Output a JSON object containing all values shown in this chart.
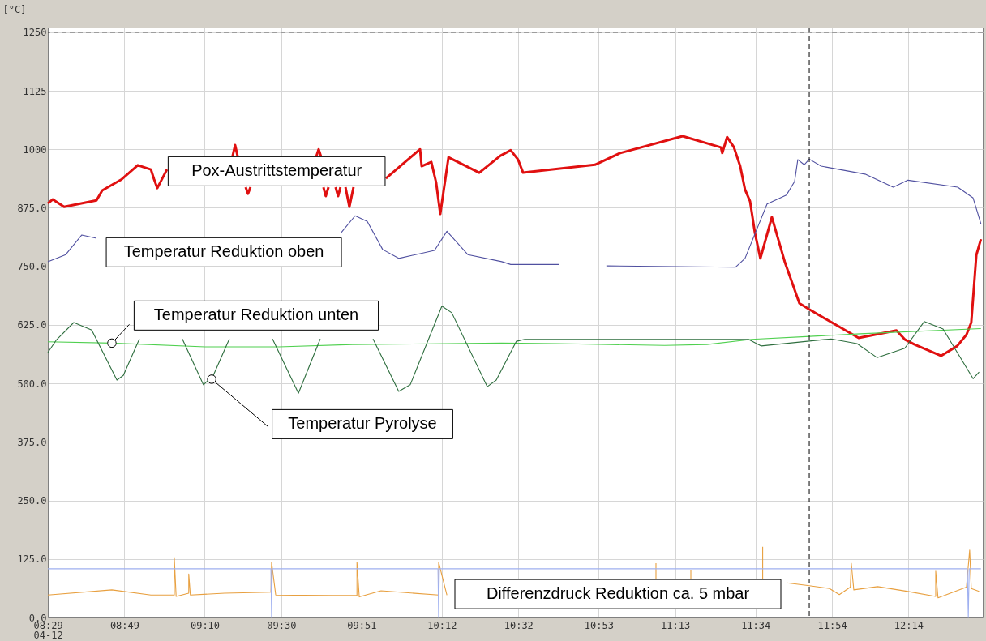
{
  "chart_data": {
    "type": "line",
    "ylabel": "[°C]",
    "xlim": [
      8.483,
      12.557
    ],
    "ylim": [
      0,
      1260
    ],
    "xticks": [
      {
        "value": 8.4833,
        "label": "08:29\n04-12"
      },
      {
        "value": 8.8167,
        "label": "08:49"
      },
      {
        "value": 9.1667,
        "label": "09:10"
      },
      {
        "value": 9.5,
        "label": "09:30"
      },
      {
        "value": 9.85,
        "label": "09:51"
      },
      {
        "value": 10.2,
        "label": "10:12"
      },
      {
        "value": 10.5333,
        "label": "10:32"
      },
      {
        "value": 10.8833,
        "label": "10:53"
      },
      {
        "value": 11.2167,
        "label": "11:13"
      },
      {
        "value": 11.5667,
        "label": "11:34"
      },
      {
        "value": 11.9,
        "label": "11:54"
      },
      {
        "value": 12.2333,
        "label": "12:14"
      }
    ],
    "yticks": [
      1250,
      1125,
      1000,
      {
        "value": 875,
        "label": "875.0"
      },
      {
        "value": 750,
        "label": "750.0"
      },
      {
        "value": 625,
        "label": "625.0"
      },
      {
        "value": 500,
        "label": "500.0"
      },
      {
        "value": 375,
        "label": "375.0"
      },
      {
        "value": 250,
        "label": "250.0"
      },
      {
        "value": 125,
        "label": "125.0"
      },
      {
        "value": 0,
        "label": "0.0"
      }
    ],
    "grid": true,
    "ref_lines": [
      {
        "axis": "y",
        "value": 1250,
        "color": "#000000",
        "line_style": "dashed"
      },
      {
        "axis": "x",
        "value": 11.801,
        "color": "#000000",
        "line_style": "dashed"
      }
    ],
    "series": [
      {
        "name": "Pox-Austrittstemperatur",
        "color": "#e01010",
        "x": [
          8.483,
          8.504,
          8.554,
          8.695,
          8.72,
          8.805,
          8.875,
          8.932,
          8.946,
          8.96,
          9.002,
          9.11,
          9.288,
          9.299,
          9.31,
          9.323,
          9.345,
          9.355,
          9.366,
          9.516,
          9.653,
          9.663,
          9.673,
          9.678,
          9.684,
          9.694,
          9.706,
          9.719,
          9.737,
          9.748,
          9.758,
          9.77,
          9.78,
          9.797,
          9.815,
          9.871,
          9.956,
          10.105,
          10.112,
          10.154,
          10.175,
          10.193,
          10.229,
          10.363,
          10.454,
          10.5,
          10.532,
          10.554,
          10.867,
          10.977,
          11.249,
          11.416,
          11.422,
          11.443,
          11.472,
          11.5,
          11.521,
          11.543,
          11.564,
          11.588,
          11.638,
          11.694,
          11.758,
          11.801,
          11.889,
          12.016,
          12.181,
          12.217,
          12.26,
          12.376,
          12.446,
          12.486,
          12.507,
          12.529,
          12.549
        ],
        "values": [
          884,
          893,
          877,
          891,
          912,
          936,
          966,
          957,
          936,
          917,
          957,
          null,
          985,
          1009,
          985,
          null,
          919,
          905,
          919,
          null,
          985,
          1000,
          985,
          null,
          919,
          900,
          919,
          null,
          919,
          900,
          919,
          null,
          919,
          877,
          919,
          null,
          938,
          1000,
          964,
          973,
          929,
          862,
          983,
          950,
          986,
          998,
          978,
          950,
          967,
          992,
          1028,
          1004,
          992,
          1026,
          1005,
          964,
          914,
          889,
          822,
          767,
          855,
          760,
          671,
          658,
          633,
          597,
          613,
          594,
          583,
          559,
          580,
          604,
          630,
          774,
          808
        ]
      },
      {
        "name": "Temperatur Reduktion oben",
        "color": "#5050a0",
        "x": [
          8.483,
          8.561,
          8.631,
          8.695,
          9.211,
          9.761,
          9.822,
          9.875,
          9.942,
          10.012,
          10.168,
          10.222,
          10.313,
          10.461,
          10.5,
          10.709,
          10.816,
          10.917,
          11.479,
          11.521,
          11.617,
          11.701,
          11.737,
          11.751,
          11.779,
          11.801,
          11.853,
          12.044,
          12.167,
          12.231,
          12.448,
          12.515,
          12.549
        ],
        "values": [
          760,
          775,
          817,
          810,
          null,
          822,
          858,
          846,
          786,
          767,
          784,
          825,
          775,
          760,
          754,
          754,
          null,
          751,
          748,
          767,
          883,
          902,
          931,
          978,
          967,
          979,
          964,
          947,
          919,
          934,
          919,
          896,
          841
        ]
      },
      {
        "name": "Temperatur Reduktion unten",
        "color": "#50d050",
        "x": [
          8.483,
          8.762,
          9.168,
          9.49,
          9.811,
          10.461,
          10.702,
          11.171,
          11.355,
          11.55,
          11.786,
          12.023,
          12.549
        ],
        "values": [
          589,
          586,
          578,
          578,
          583,
          586,
          585,
          581,
          583,
          594,
          600,
          606,
          617
        ]
      },
      {
        "name": "Temperatur Pyrolyse",
        "color": "#2e6e3e",
        "x": [
          8.483,
          8.519,
          8.596,
          8.674,
          8.784,
          8.812,
          8.882,
          8.978,
          9.069,
          9.161,
          9.204,
          9.274,
          9.363,
          9.462,
          9.575,
          9.67,
          9.78,
          9.9,
          10.012,
          10.062,
          10.2,
          10.243,
          10.398,
          10.437,
          10.525,
          10.561,
          11.536,
          11.592,
          11.896,
          12.009,
          12.097,
          12.217,
          12.302,
          12.384,
          12.515,
          12.541
        ],
        "values": [
          566,
          592,
          630,
          614,
          507,
          517,
          595,
          null,
          595,
          497,
          517,
          595,
          null,
          595,
          479,
          595,
          null,
          595,
          483,
          497,
          665,
          651,
          493,
          507,
          590,
          594,
          594,
          580,
          595,
          585,
          555,
          575,
          632,
          616,
          510,
          524
        ]
      },
      {
        "name": "Differenzdruck Reduktion ca. 5 mbar",
        "color": "#e8a040",
        "x": [
          8.483,
          8.762,
          8.932,
          9.034,
          9.034,
          9.042,
          9.097,
          9.097,
          9.104,
          9.253,
          9.455,
          9.458,
          9.476,
          9.72,
          9.83,
          9.83,
          9.84,
          9.935,
          10.186,
          10.186,
          10.222,
          10.633,
          11.133,
          11.133,
          11.191,
          11.285,
          11.285,
          11.445,
          11.598,
          11.598,
          11.648,
          11.703,
          11.801,
          11.889,
          11.932,
          11.98,
          11.984,
          11.995,
          12.099,
          12.226,
          12.352,
          12.352,
          12.362,
          12.486,
          12.5,
          12.507,
          12.541
        ],
        "values": [
          48,
          59,
          48,
          48,
          128,
          45,
          52,
          93,
          48,
          52,
          54,
          118,
          48,
          47,
          47,
          118,
          44,
          57,
          48,
          118,
          48,
          null,
          80,
          116,
          null,
          80,
          102,
          null,
          80,
          151,
          null,
          74,
          68,
          62,
          49,
          65,
          116,
          59,
          66,
          56,
          45,
          99,
          42,
          65,
          144,
          62,
          56
        ]
      },
      {
        "color": "#9fb0f0",
        "x": [
          8.483,
          9.455,
          9.458,
          9.461,
          10.183,
          10.186,
          10.189,
          12.49,
          12.494,
          12.498,
          12.549
        ],
        "values": [
          104,
          104,
          0,
          104,
          104,
          0,
          104,
          104,
          0,
          104,
          104
        ]
      }
    ]
  }
}
